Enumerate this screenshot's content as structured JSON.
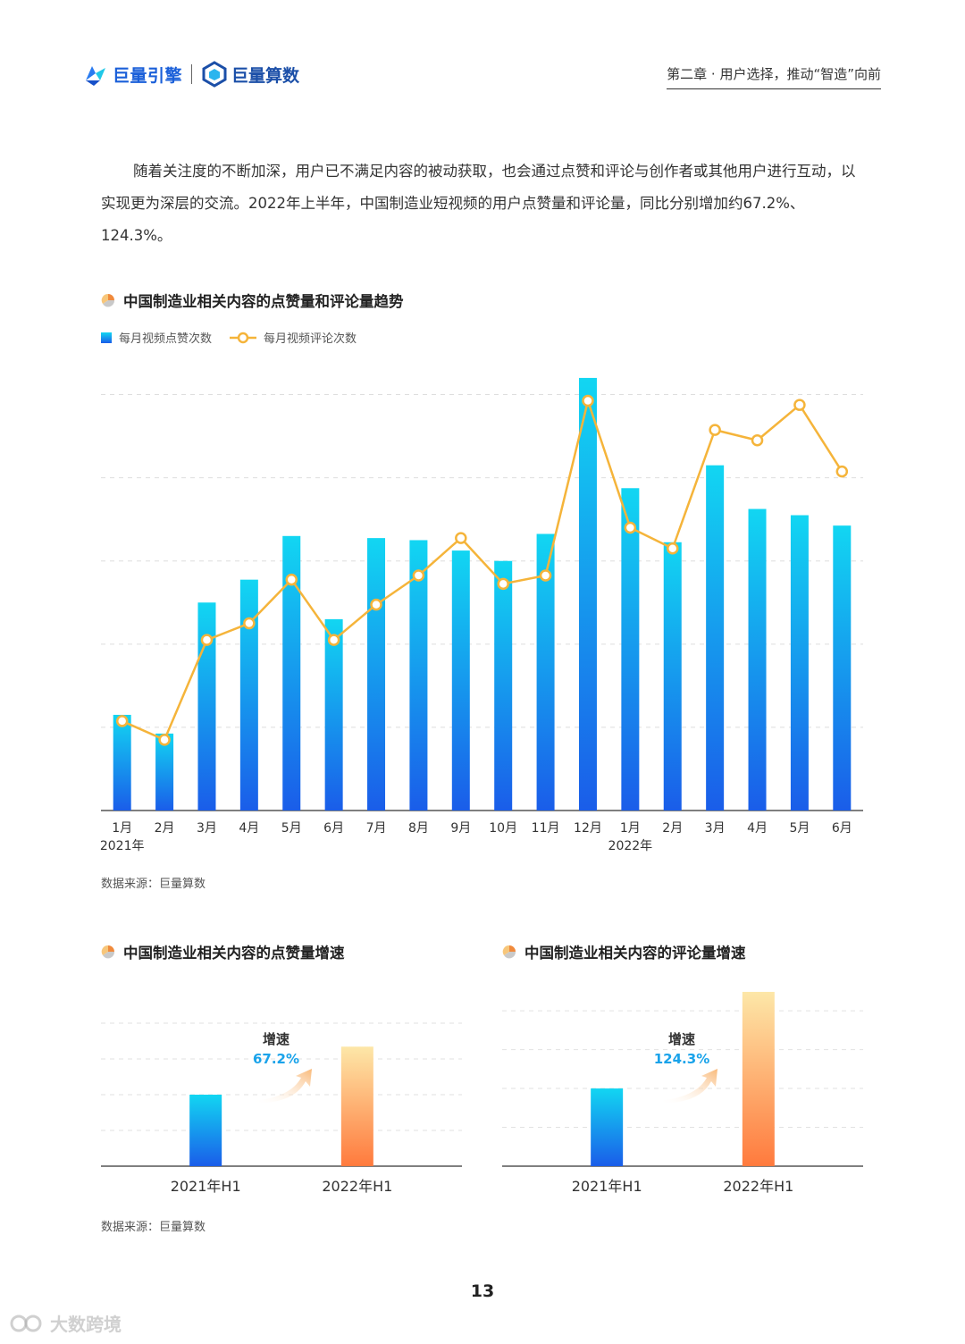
{
  "header": {
    "logo1": "巨量引擎",
    "logo2": "巨量算数",
    "chapter": "第二章 · 用户选择，推动“智造”向前"
  },
  "intro": "随着关注度的不断加深，用户已不满足内容的被动获取，也会通过点赞和评论与创作者或其他用户进行互动，以实现更为深层的交流。2022年上半年，中国制造业短视频的用户点赞量和评论量，同比分别增加约67.2%、124.3%。",
  "colors": {
    "bar_top": "#12d6f2",
    "bar_bottom": "#1a5de9",
    "line": "#f5b43a",
    "orange_top": "#fde7a8",
    "orange_bottom": "#ff7a3d",
    "accent_blue": "#1aa3ea"
  },
  "chart_data": [
    {
      "type": "bar+line",
      "title": "中国制造业相关内容的点赞量和评论量趋势",
      "categories": [
        "1月",
        "2月",
        "3月",
        "4月",
        "5月",
        "6月",
        "7月",
        "8月",
        "9月",
        "10月",
        "11月",
        "12月",
        "1月",
        "2月",
        "3月",
        "4月",
        "5月",
        "6月"
      ],
      "year_labels": [
        {
          "index": 0,
          "label": "2021年"
        },
        {
          "index": 12,
          "label": "2022年"
        }
      ],
      "series": [
        {
          "name": "每月视频点赞次数",
          "kind": "bar",
          "values": [
            23,
            18.5,
            50,
            55.5,
            66,
            46,
            65.5,
            65,
            62.5,
            60,
            66.5,
            104,
            77.5,
            64.5,
            83,
            72.5,
            71,
            68.5
          ]
        },
        {
          "name": "每月视频评论次数",
          "kind": "line",
          "values": [
            21.5,
            17,
            41,
            45,
            55.5,
            41,
            49.5,
            56.5,
            65.5,
            54.5,
            56.5,
            98.5,
            68,
            63,
            91.5,
            89,
            97.5,
            81.5
          ]
        }
      ],
      "ylim": [
        0,
        110
      ],
      "gridlines": [
        20,
        40,
        60,
        80,
        100
      ],
      "grid": true,
      "legend": "top-left",
      "source": "数据来源：巨量算数"
    },
    {
      "type": "bar",
      "title": "中国制造业相关内容的点赞量增速",
      "categories": [
        "2021年H1",
        "2022年H1"
      ],
      "values": [
        100,
        167.2
      ],
      "annotation_label": "增速",
      "annotation_value": "67.2%",
      "ylim": [
        0,
        250
      ],
      "gridlines": [
        50,
        100,
        150,
        200
      ],
      "source": "数据来源：巨量算数"
    },
    {
      "type": "bar",
      "title": "中国制造业相关内容的评论量增速",
      "categories": [
        "2021年H1",
        "2022年H1"
      ],
      "values": [
        100,
        224.3
      ],
      "annotation_label": "增速",
      "annotation_value": "124.3%",
      "ylim": [
        0,
        230
      ],
      "gridlines": [
        50,
        100,
        150,
        200
      ],
      "source": "数据来源：巨量算数"
    }
  ],
  "page_number": "13",
  "watermark": "大数跨境"
}
